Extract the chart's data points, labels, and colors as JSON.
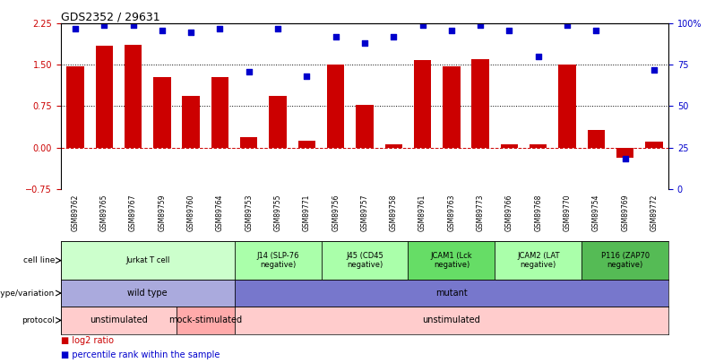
{
  "title": "GDS2352 / 29631",
  "samples": [
    "GSM89762",
    "GSM89765",
    "GSM89767",
    "GSM89759",
    "GSM89760",
    "GSM89764",
    "GSM89753",
    "GSM89755",
    "GSM89771",
    "GSM89756",
    "GSM89757",
    "GSM89758",
    "GSM89761",
    "GSM89763",
    "GSM89773",
    "GSM89766",
    "GSM89768",
    "GSM89770",
    "GSM89754",
    "GSM89769",
    "GSM89772"
  ],
  "log2_ratio": [
    1.48,
    1.85,
    1.87,
    1.28,
    0.93,
    1.28,
    0.18,
    0.93,
    0.13,
    1.5,
    0.77,
    0.05,
    1.58,
    1.47,
    1.6,
    0.05,
    0.05,
    1.5,
    0.32,
    -0.18,
    0.1
  ],
  "percentile": [
    97,
    99,
    99,
    96,
    95,
    97,
    71,
    97,
    68,
    92,
    88,
    92,
    99,
    96,
    99,
    96,
    80,
    99,
    96,
    18,
    72
  ],
  "bar_color": "#cc0000",
  "dot_color": "#0000cc",
  "ylim_left": [
    -0.75,
    2.25
  ],
  "ylim_right": [
    0,
    100
  ],
  "yticks_left": [
    -0.75,
    0,
    0.75,
    1.5,
    2.25
  ],
  "yticks_right": [
    0,
    25,
    50,
    75,
    100
  ],
  "hlines": [
    0.0,
    0.75,
    1.5
  ],
  "hline_colors": [
    "#cc0000",
    "#000000",
    "#000000"
  ],
  "hline_styles": [
    "--",
    ":",
    ":"
  ],
  "cell_line_groups": [
    {
      "label": "Jurkat T cell",
      "start": 0,
      "end": 6,
      "color": "#ccffcc"
    },
    {
      "label": "J14 (SLP-76\nnegative)",
      "start": 6,
      "end": 9,
      "color": "#aaffaa"
    },
    {
      "label": "J45 (CD45\nnegative)",
      "start": 9,
      "end": 12,
      "color": "#aaffaa"
    },
    {
      "label": "JCAM1 (Lck\nnegative)",
      "start": 12,
      "end": 15,
      "color": "#66dd66"
    },
    {
      "label": "JCAM2 (LAT\nnegative)",
      "start": 15,
      "end": 18,
      "color": "#aaffaa"
    },
    {
      "label": "P116 (ZAP70\nnegative)",
      "start": 18,
      "end": 21,
      "color": "#55bb55"
    }
  ],
  "genotype_groups": [
    {
      "label": "wild type",
      "start": 0,
      "end": 6,
      "color": "#aaaadd"
    },
    {
      "label": "mutant",
      "start": 6,
      "end": 21,
      "color": "#7777cc"
    }
  ],
  "protocol_groups": [
    {
      "label": "unstimulated",
      "start": 0,
      "end": 4,
      "color": "#ffcccc"
    },
    {
      "label": "mock-stimulated",
      "start": 4,
      "end": 6,
      "color": "#ffaaaa"
    },
    {
      "label": "unstimulated",
      "start": 6,
      "end": 21,
      "color": "#ffcccc"
    }
  ],
  "row_labels": [
    "cell line",
    "genotype/variation",
    "protocol"
  ],
  "legend_red": "log2 ratio",
  "legend_blue": "percentile rank within the sample"
}
